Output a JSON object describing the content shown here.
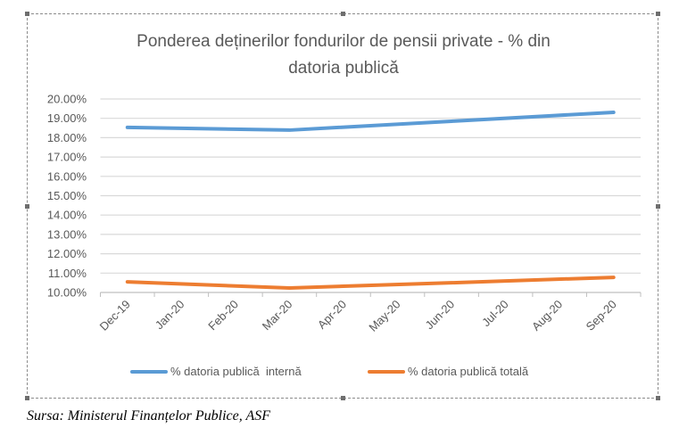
{
  "chart_data": {
    "type": "line",
    "title_line1": "Ponderea deținerilor fondurilor de pensii private - % din",
    "title_line2": "datoria publică",
    "categories": [
      "Dec-19",
      "Jan-20",
      "Feb-20",
      "Mar-20",
      "Apr-20",
      "May-20",
      "Jun-20",
      "Jul-20",
      "Aug-20",
      "Sep-20"
    ],
    "y_ticks": [
      "10.00%",
      "11.00%",
      "12.00%",
      "13.00%",
      "14.00%",
      "15.00%",
      "16.00%",
      "17.00%",
      "18.00%",
      "19.00%",
      "20.00%"
    ],
    "ylim": [
      10,
      20
    ],
    "grid": true,
    "legend_position": "bottom",
    "series": [
      {
        "name": "% datoria publică  internă",
        "color": "#5b9bd5",
        "points": [
          [
            0,
            18.53
          ],
          [
            3,
            18.39
          ],
          [
            6,
            18.85
          ],
          [
            9,
            19.31
          ]
        ]
      },
      {
        "name": "% datoria publică totală",
        "color": "#ed7d31",
        "points": [
          [
            0,
            10.55
          ],
          [
            3,
            10.23
          ],
          [
            6,
            10.5
          ],
          [
            9,
            10.78
          ]
        ]
      }
    ]
  },
  "source": "Sursa: Ministerul Finanțelor Publice, ASF"
}
